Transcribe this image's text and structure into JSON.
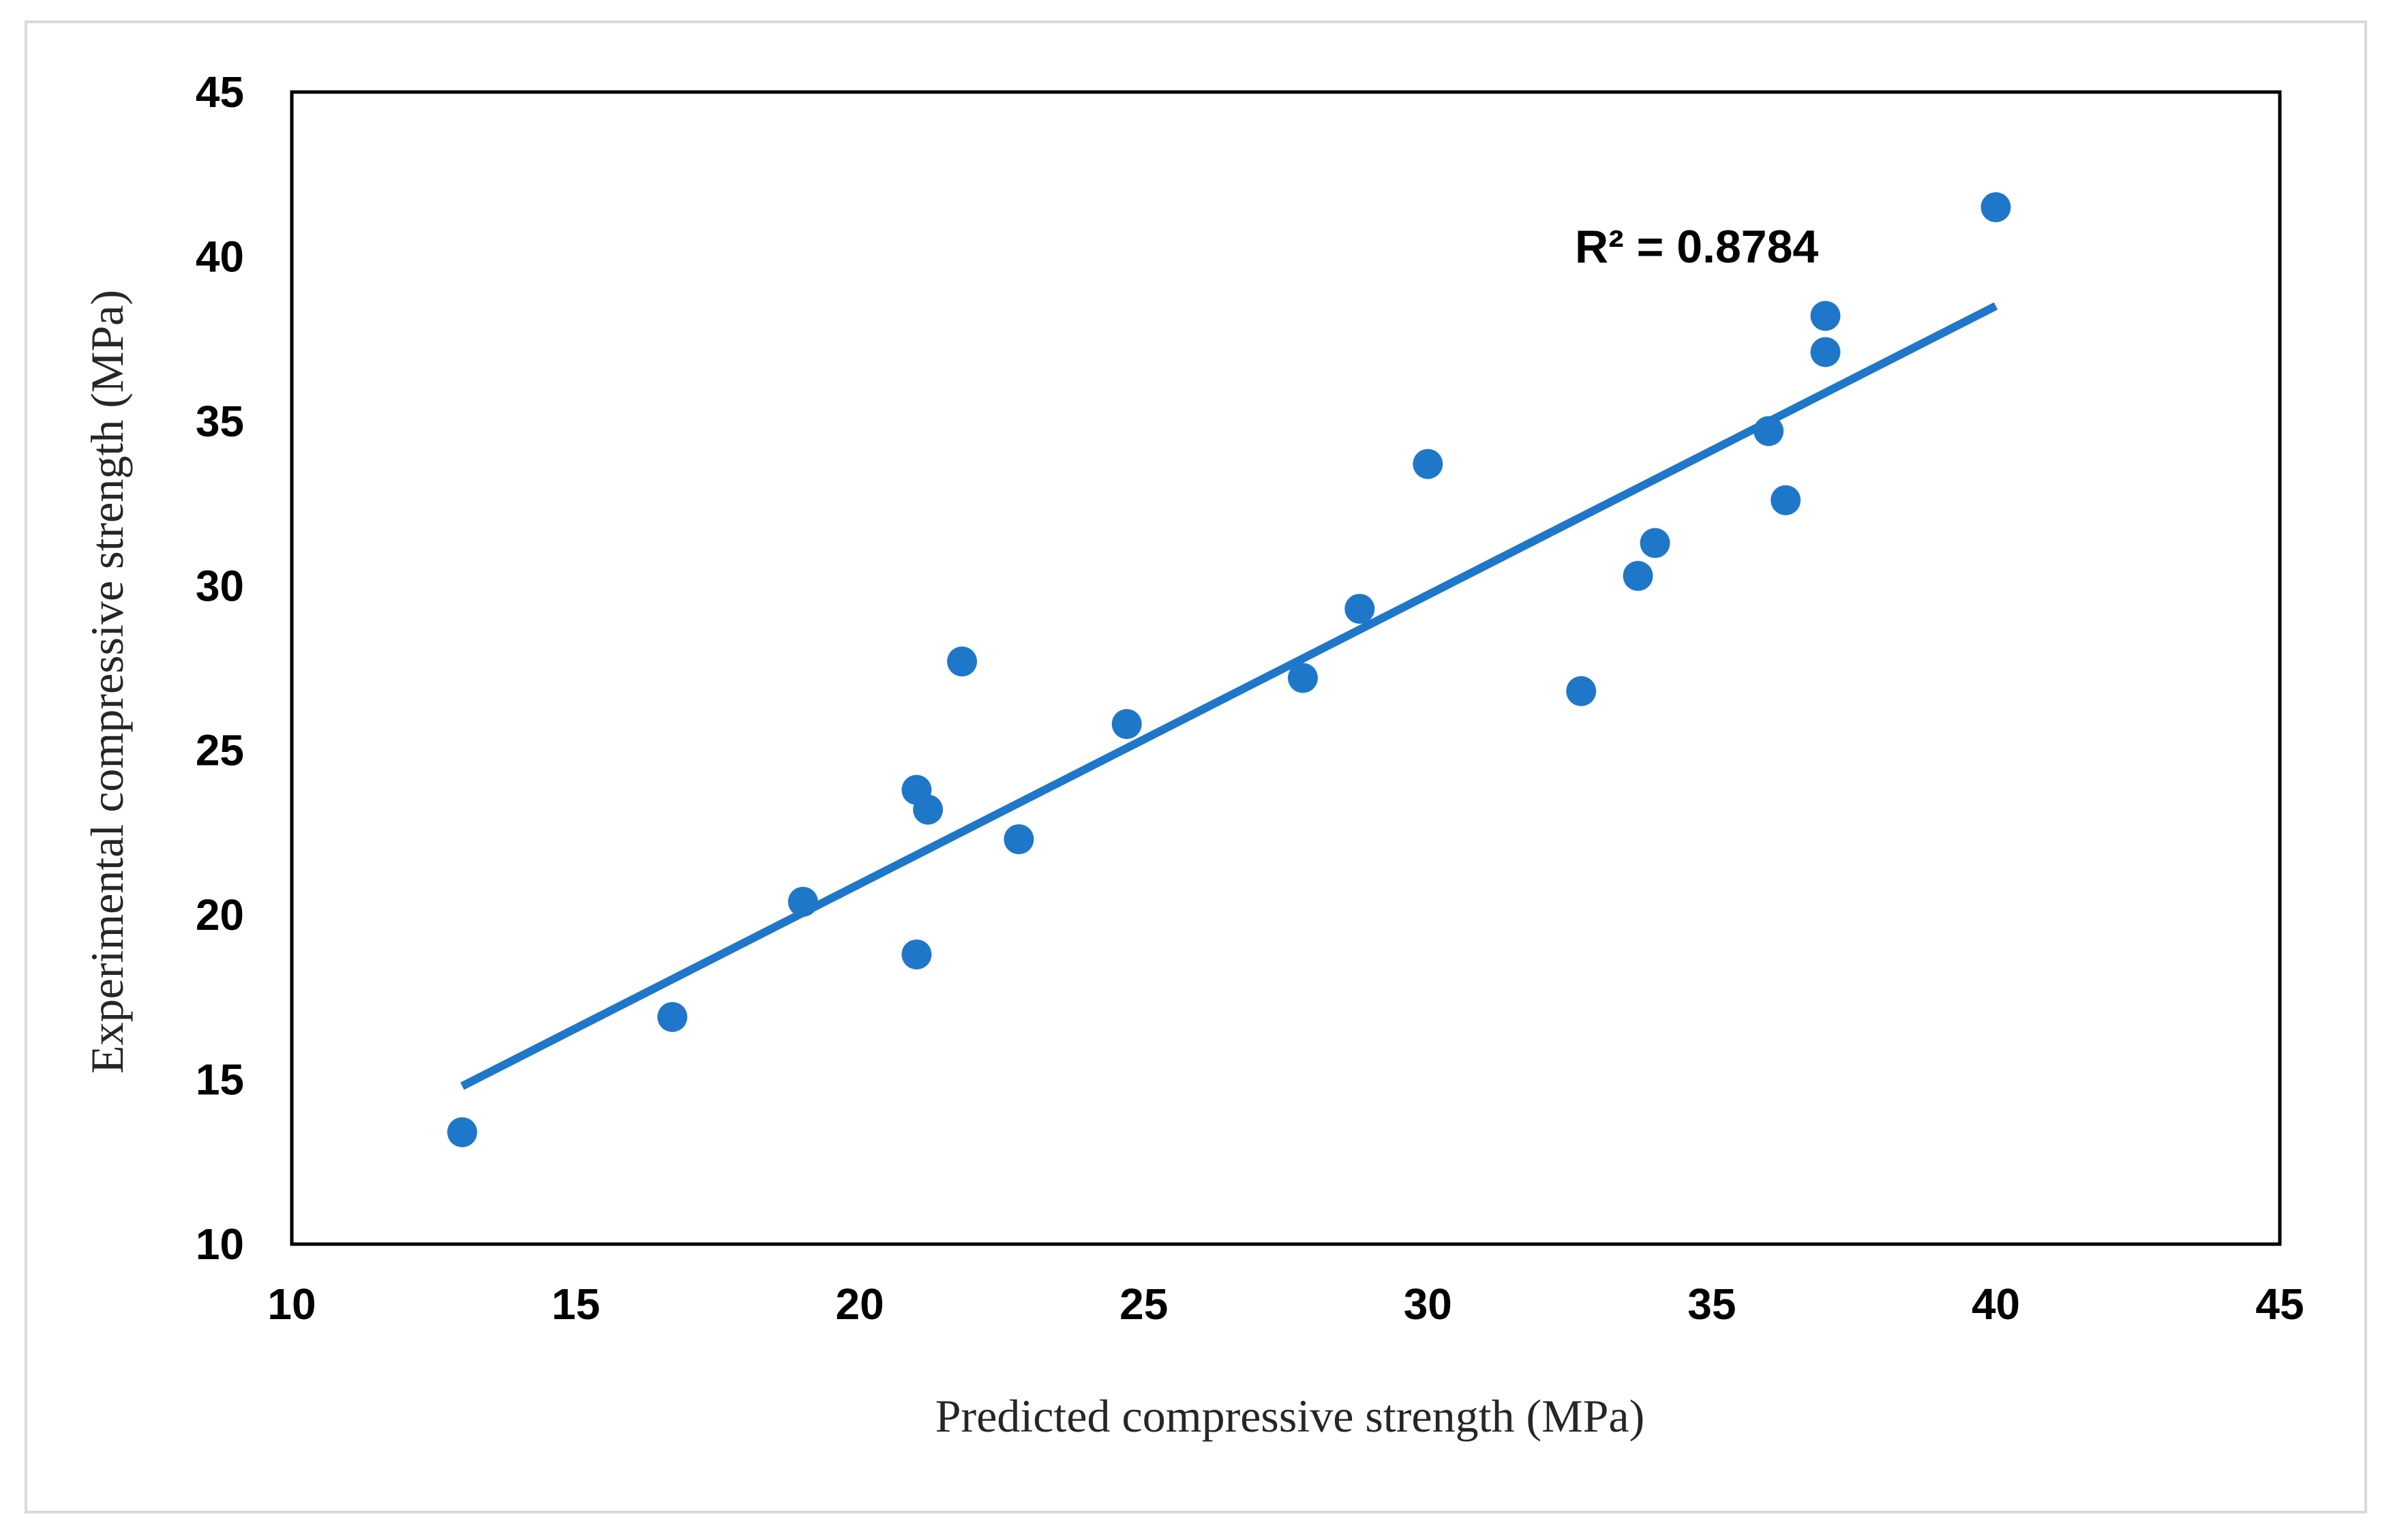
{
  "chart_data": {
    "type": "scatter",
    "title": "",
    "xlabel": "Predicted compressive strength (MPa)",
    "ylabel": "Experimental compressive strength (MPa)",
    "xlim": [
      10,
      45
    ],
    "ylim": [
      10,
      45
    ],
    "x_ticks": [
      "10",
      "15",
      "20",
      "25",
      "30",
      "35",
      "40",
      "45"
    ],
    "y_ticks": [
      "10",
      "15",
      "20",
      "25",
      "30",
      "35",
      "40",
      "45"
    ],
    "grid": false,
    "legend": "none",
    "point_color": "#1f77c9",
    "trendline_color": "#1f77c9",
    "points": [
      {
        "x": 13.0,
        "y": 13.4
      },
      {
        "x": 16.7,
        "y": 16.9
      },
      {
        "x": 19.0,
        "y": 20.4
      },
      {
        "x": 21.0,
        "y": 18.8
      },
      {
        "x": 21.0,
        "y": 23.8
      },
      {
        "x": 21.2,
        "y": 23.2
      },
      {
        "x": 21.8,
        "y": 27.7
      },
      {
        "x": 22.8,
        "y": 22.3
      },
      {
        "x": 24.7,
        "y": 25.8
      },
      {
        "x": 27.8,
        "y": 27.2
      },
      {
        "x": 28.8,
        "y": 29.3
      },
      {
        "x": 30.0,
        "y": 33.7
      },
      {
        "x": 32.7,
        "y": 26.8
      },
      {
        "x": 33.7,
        "y": 30.3
      },
      {
        "x": 34.0,
        "y": 31.3
      },
      {
        "x": 36.0,
        "y": 34.7
      },
      {
        "x": 36.3,
        "y": 32.6
      },
      {
        "x": 37.0,
        "y": 37.1
      },
      {
        "x": 37.0,
        "y": 38.2
      },
      {
        "x": 40.0,
        "y": 41.5
      }
    ],
    "trendline": {
      "x_start": 13.0,
      "y_start": 14.8,
      "x_end": 40.0,
      "y_end": 38.5,
      "label": "R² = 0.8784"
    }
  }
}
